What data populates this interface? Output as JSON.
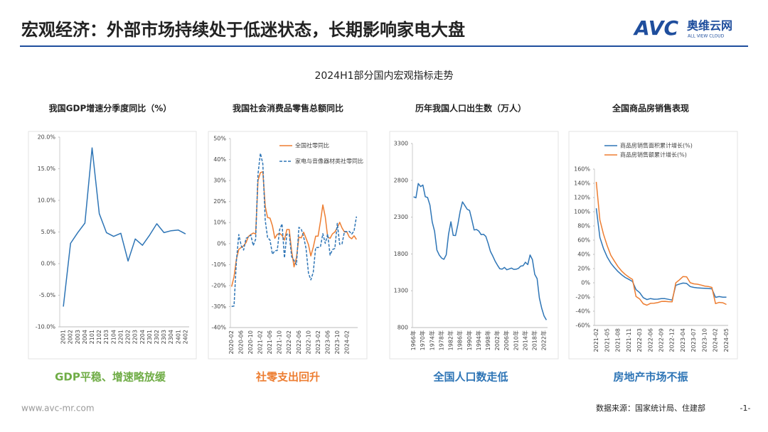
{
  "header": {
    "title": "宏观经济：外部市场持续处于低迷状态，长期影响家电大盘",
    "logo": "AVC",
    "brand": "奥维云网",
    "brand_en": "ALL VIEW CLOUD"
  },
  "section_title": "2024H1部分国内宏观指标走势",
  "footer": {
    "url": "www.avc-mr.com",
    "source": "数据来源：国家统计局、住建部",
    "page": "-1-"
  },
  "chart_data": [
    {
      "type": "line",
      "title": "我国GDP增速分季度同比（%）",
      "caption": "GDP平稳、增速略放缓",
      "caption_color": "#70ad47",
      "categories": [
        "2001",
        "2002",
        "2003",
        "2004",
        "2101",
        "2102",
        "2103",
        "2104",
        "2201",
        "2202",
        "2203",
        "2204",
        "2301",
        "2302",
        "2303",
        "2304",
        "2401",
        "2402"
      ],
      "series": [
        {
          "color": "#2e75b6",
          "values": [
            -6.8,
            3.2,
            4.9,
            6.4,
            18.3,
            7.9,
            4.9,
            4.3,
            4.8,
            0.4,
            3.9,
            2.9,
            4.5,
            6.3,
            4.9,
            5.2,
            5.3,
            4.7
          ]
        }
      ],
      "ylim": [
        -10,
        20
      ],
      "yticks": [
        {
          "value": -10,
          "label": "-10.0%"
        },
        {
          "value": -5,
          "label": "-5.0%"
        },
        {
          "value": 0,
          "label": "0.0%"
        },
        {
          "value": 5,
          "label": "5.0%"
        },
        {
          "value": 10,
          "label": "10.0%"
        },
        {
          "value": 15,
          "label": "15.0%"
        },
        {
          "value": 20,
          "label": "20.0%"
        }
      ]
    },
    {
      "type": "line",
      "title": "我国社会消费品零售总额同比",
      "caption": "社零支出回升",
      "caption_color": "#ed7d31",
      "legend": "upper right",
      "categories": [
        "2020-02",
        null,
        null,
        null,
        "2020-06",
        null,
        null,
        null,
        "2020-10",
        null,
        null,
        null,
        "2021-02",
        null,
        null,
        null,
        "2021-06",
        null,
        null,
        null,
        "2021-10",
        null,
        null,
        null,
        "2022-02",
        null,
        null,
        null,
        "2022-06",
        null,
        null,
        null,
        "2022-10",
        null,
        null,
        null,
        "2023-02",
        null,
        null,
        null,
        "2023-06",
        null,
        null,
        null,
        "2023-10",
        null,
        null,
        null,
        "2024-02",
        null,
        null,
        null,
        null
      ],
      "series": [
        {
          "name": "全国社零同比",
          "color": "#ed7d31",
          "values": [
            -20.5,
            -15.8,
            -7.5,
            -2.8,
            -1.8,
            -1.1,
            0.5,
            3.3,
            4.3,
            5.0,
            4.6,
            30,
            33.8,
            34.2,
            17.7,
            12.4,
            12.1,
            8.5,
            2.5,
            4.4,
            4.9,
            3.9,
            1.7,
            6.7,
            6.7,
            -3.5,
            -11.1,
            -6.7,
            3.1,
            2.7,
            5.4,
            2.5,
            -0.5,
            -5.9,
            -1.8,
            3.5,
            3.5,
            10.6,
            18.4,
            12.7,
            3.1,
            2.5,
            4.6,
            5.5,
            7.6,
            10.1,
            7.4,
            5.5,
            5.5,
            3.1,
            2.3,
            3.7,
            2.0
          ]
        },
        {
          "name": "家电与音像器材类社零同比",
          "color": "#2e75b6",
          "dash": true,
          "values": [
            -30,
            -29.7,
            -8.5,
            4.3,
            -1,
            -3.1,
            2.5,
            3.1,
            4.1,
            -1,
            2.1,
            33,
            43,
            38,
            11,
            2.8,
            1.7,
            -5.1,
            -3.4,
            -3.3,
            6.6,
            9.4,
            -6.8,
            4.5,
            4.5,
            -6.2,
            -8.1,
            -10.1,
            7.7,
            6.9,
            3.2,
            -2.4,
            -14.1,
            -17.3,
            -13.7,
            -1.9,
            -1.9,
            -1.4,
            4.7,
            0.1,
            4.5,
            -5.5,
            -2.9,
            -2.3,
            9.6,
            -0.4,
            -0.1,
            5.7,
            5.7,
            5.8,
            4.5,
            6.0,
            12.9
          ]
        }
      ],
      "ylim": [
        -40,
        50
      ],
      "yticks": [
        {
          "value": -40,
          "label": "-40%"
        },
        {
          "value": -30,
          "label": "-30%"
        },
        {
          "value": -20,
          "label": "-20%"
        },
        {
          "value": -10,
          "label": "-10%"
        },
        {
          "value": 0,
          "label": "0%"
        },
        {
          "value": 10,
          "label": "10%"
        },
        {
          "value": 20,
          "label": "20%"
        },
        {
          "value": 30,
          "label": "30%"
        },
        {
          "value": 40,
          "label": "40%"
        },
        {
          "value": 50,
          "label": "50%"
        }
      ]
    },
    {
      "type": "line",
      "title": "历年我国人口出生数（万人）",
      "caption": "全国人口数走低",
      "caption_color": "#2e75b6",
      "categories": [
        "1966年",
        null,
        null,
        null,
        "1970年",
        null,
        null,
        null,
        "1974年",
        null,
        null,
        null,
        "1978年",
        null,
        null,
        null,
        "1982年",
        null,
        null,
        null,
        "1986年",
        null,
        null,
        null,
        "1990年",
        null,
        null,
        null,
        "1994年",
        null,
        null,
        null,
        "1998年",
        null,
        null,
        null,
        "2002年",
        null,
        null,
        null,
        "2006年",
        null,
        null,
        null,
        "2010年",
        null,
        null,
        null,
        "2014年",
        null,
        null,
        null,
        "2018年",
        null,
        null,
        null,
        "2022年",
        null
      ],
      "series": [
        {
          "color": "#2e75b6",
          "values": [
            2577,
            2563,
            2757,
            2715,
            2736,
            2578,
            2566,
            2463,
            2235,
            2109,
            1853,
            1786,
            1745,
            1727,
            1787,
            2069,
            2237,
            2052,
            2050,
            2202,
            2384,
            2508,
            2457,
            2407,
            2391,
            2265,
            2125,
            2132,
            2110,
            2063,
            2067,
            2038,
            1942,
            1834,
            1771,
            1702,
            1647,
            1599,
            1593,
            1617,
            1585,
            1595,
            1608,
            1591,
            1592,
            1604,
            1635,
            1640,
            1687,
            1655,
            1786,
            1723,
            1523,
            1465,
            1202,
            1062,
            956,
            902
          ]
        }
      ],
      "ylim": [
        800,
        3300
      ],
      "yticks": [
        800,
        1300,
        1800,
        2300,
        2800,
        3300
      ]
    },
    {
      "type": "line",
      "title": "全国商品房销售表现",
      "caption": "房地产市场不振",
      "caption_color": "#2e75b6",
      "legend": "upper left",
      "categories": [
        "2021-02",
        null,
        null,
        "2021-05",
        null,
        null,
        "2021-08",
        null,
        null,
        "2021-11",
        null,
        null,
        "2022-03",
        null,
        null,
        "2022-06",
        null,
        null,
        "2022-09",
        null,
        null,
        "2022-12",
        null,
        null,
        "2023-04",
        null,
        null,
        "2023-07",
        null,
        null,
        "2023-10",
        null,
        null,
        "2024-02",
        null,
        null,
        "2024-05"
      ],
      "series": [
        {
          "name": "商品房销售面积累计增长(%)",
          "color": "#2e75b6",
          "values": [
            104.9,
            63.8,
            48.1,
            36.4,
            27.7,
            21.5,
            15.9,
            11.3,
            7.5,
            4.8,
            1.9,
            -9.6,
            -13.8,
            -20.9,
            -23.6,
            -22.2,
            -23.1,
            -23.0,
            -22.2,
            -22.3,
            -23.3,
            -24.3,
            -3.6,
            -1.8,
            -0.4,
            -0.9,
            -5.3,
            -6.5,
            -7.1,
            -7.5,
            -7.8,
            -8.0,
            -8.5,
            -20.5,
            -19.4,
            -20.2,
            -20.3
          ]
        },
        {
          "name": "商品房销售额累计增长(%)",
          "color": "#ed7d31",
          "values": [
            142,
            88.5,
            68.2,
            52.4,
            38.9,
            30.7,
            22.8,
            16.6,
            11.8,
            8.0,
            4.8,
            -19.3,
            -22.7,
            -29.5,
            -31.5,
            -28.9,
            -28.8,
            -27.9,
            -26.3,
            -26.1,
            -26.6,
            -26.7,
            -0.1,
            4.1,
            8.8,
            8.4,
            0.1,
            -1.5,
            -2.0,
            -3.2,
            -4.6,
            -5.2,
            -6.5,
            -29.3,
            -27.6,
            -28.1,
            -30.5
          ]
        }
      ],
      "ylim": [
        -60,
        160
      ],
      "yticks": [
        {
          "value": -60,
          "label": "-60%"
        },
        {
          "value": -40,
          "label": "-40%"
        },
        {
          "value": -20,
          "label": "-20%"
        },
        {
          "value": 0,
          "label": "0%"
        },
        {
          "value": 20,
          "label": "20%"
        },
        {
          "value": 40,
          "label": "40%"
        },
        {
          "value": 60,
          "label": "60%"
        },
        {
          "value": 80,
          "label": "80%"
        },
        {
          "value": 100,
          "label": "100%"
        },
        {
          "value": 120,
          "label": "120%"
        },
        {
          "value": 140,
          "label": "140%"
        },
        {
          "value": 160,
          "label": "160%"
        }
      ]
    }
  ]
}
